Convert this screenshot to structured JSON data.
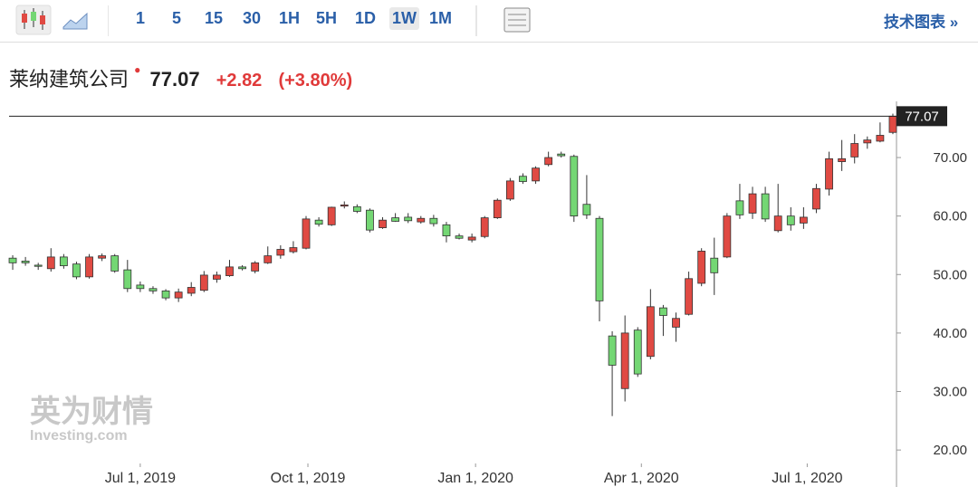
{
  "toolbar": {
    "intervals": [
      "1",
      "5",
      "15",
      "30",
      "1H",
      "5H",
      "1D",
      "1W",
      "1M"
    ],
    "active": "1W",
    "link": "技术图表 »"
  },
  "header": {
    "name": "莱纳建筑公司",
    "price": "77.07",
    "change": "+2.82",
    "change_pct": "(+3.80%)"
  },
  "watermark": {
    "cn": "英为财情",
    "en": "Investing.com"
  },
  "chart_data": {
    "type": "candlestick",
    "up_color": "#e04a43",
    "down_color": "#74d774",
    "x": [
      "2019-04-22",
      "2019-04-29",
      "2019-05-06",
      "2019-05-13",
      "2019-05-20",
      "2019-05-27",
      "2019-06-03",
      "2019-06-10",
      "2019-06-17",
      "2019-06-24",
      "2019-07-01",
      "2019-07-08",
      "2019-07-15",
      "2019-07-22",
      "2019-07-29",
      "2019-08-05",
      "2019-08-12",
      "2019-08-19",
      "2019-08-26",
      "2019-09-02",
      "2019-09-09",
      "2019-09-16",
      "2019-09-23",
      "2019-09-30",
      "2019-10-07",
      "2019-10-14",
      "2019-10-21",
      "2019-10-28",
      "2019-11-04",
      "2019-11-11",
      "2019-11-18",
      "2019-11-25",
      "2019-12-02",
      "2019-12-09",
      "2019-12-16",
      "2019-12-23",
      "2019-12-30",
      "2020-01-06",
      "2020-01-13",
      "2020-01-20",
      "2020-01-27",
      "2020-02-03",
      "2020-02-10",
      "2020-02-17",
      "2020-02-24",
      "2020-03-02",
      "2020-03-09",
      "2020-03-16",
      "2020-03-23",
      "2020-03-30",
      "2020-04-06",
      "2020-04-13",
      "2020-04-20",
      "2020-04-27",
      "2020-05-04",
      "2020-05-11",
      "2020-05-18",
      "2020-05-25",
      "2020-06-01",
      "2020-06-08",
      "2020-06-15",
      "2020-06-22",
      "2020-06-29",
      "2020-07-06",
      "2020-07-13",
      "2020-07-20",
      "2020-07-27",
      "2020-08-03",
      "2020-08-10",
      "2020-08-17"
    ],
    "open": [
      52.8,
      52.3,
      51.6,
      51.0,
      53.0,
      51.8,
      49.6,
      52.8,
      53.2,
      50.8,
      48.2,
      47.6,
      47.2,
      46.0,
      46.8,
      47.3,
      49.2,
      49.8,
      51.3,
      50.6,
      52.0,
      53.3,
      53.9,
      54.5,
      59.3,
      58.5,
      61.7,
      61.6,
      61.0,
      58.0,
      59.7,
      59.8,
      59.0,
      59.6,
      58.5,
      56.6,
      55.9,
      56.5,
      59.7,
      62.9,
      66.8,
      66.0,
      68.8,
      70.6,
      70.2,
      62.0,
      59.6,
      39.5,
      30.5,
      40.5,
      36.0,
      44.3,
      41.0,
      43.2,
      48.5,
      52.8,
      53.0,
      62.6,
      60.5,
      63.8,
      57.5,
      60.0,
      58.8,
      61.2,
      64.6,
      69.3,
      70.1,
      72.5,
      72.8,
      74.3
    ],
    "high": [
      53.3,
      53.0,
      52.0,
      54.5,
      53.5,
      52.2,
      53.5,
      53.6,
      53.5,
      52.5,
      48.8,
      48.0,
      47.5,
      47.6,
      48.7,
      50.6,
      50.5,
      52.5,
      51.6,
      52.3,
      54.8,
      55.0,
      55.7,
      60.0,
      59.8,
      61.6,
      62.5,
      62.0,
      61.3,
      59.8,
      60.5,
      60.5,
      60.0,
      60.2,
      59.0,
      57.0,
      57.0,
      60.0,
      63.0,
      66.5,
      67.3,
      68.5,
      71.0,
      71.0,
      70.5,
      67.0,
      60.0,
      40.3,
      43.0,
      41.0,
      47.5,
      44.8,
      43.5,
      50.5,
      54.5,
      56.3,
      60.5,
      65.5,
      65.0,
      65.0,
      65.5,
      61.5,
      61.5,
      65.5,
      71.0,
      73.0,
      74.0,
      73.6,
      76.0,
      77.5
    ],
    "low": [
      50.8,
      51.5,
      50.8,
      50.5,
      51.0,
      49.2,
      49.3,
      52.3,
      50.3,
      47.0,
      47.0,
      46.7,
      45.6,
      45.3,
      46.3,
      47.0,
      48.6,
      49.6,
      50.7,
      50.2,
      51.8,
      52.7,
      53.6,
      54.3,
      58.2,
      58.3,
      61.3,
      60.5,
      57.2,
      57.8,
      59.0,
      58.8,
      58.7,
      58.2,
      55.5,
      56.0,
      55.5,
      56.2,
      59.5,
      62.6,
      65.5,
      65.5,
      68.5,
      70.0,
      59.0,
      59.5,
      42.0,
      25.8,
      28.3,
      32.5,
      35.5,
      39.5,
      38.5,
      43.0,
      48.0,
      46.5,
      52.8,
      59.5,
      59.5,
      59.0,
      57.2,
      57.5,
      57.8,
      60.5,
      63.5,
      67.7,
      69.0,
      71.5,
      72.6,
      74.0
    ],
    "close": [
      52.0,
      52.0,
      51.4,
      53.0,
      51.5,
      49.6,
      53.0,
      53.2,
      50.6,
      47.6,
      47.6,
      47.2,
      46.0,
      47.0,
      47.8,
      49.9,
      49.9,
      51.3,
      51.0,
      52.0,
      53.2,
      54.3,
      54.6,
      59.5,
      58.6,
      61.5,
      61.9,
      60.8,
      57.6,
      59.3,
      59.1,
      59.2,
      59.6,
      58.7,
      56.6,
      56.2,
      56.4,
      59.7,
      62.7,
      66.0,
      65.9,
      68.2,
      70.0,
      70.3,
      60.0,
      60.2,
      45.5,
      34.5,
      40.0,
      33.0,
      44.5,
      43.0,
      42.5,
      49.3,
      54.0,
      50.3,
      60.0,
      60.2,
      63.8,
      59.5,
      60.0,
      58.5,
      59.8,
      64.7,
      69.8,
      69.8,
      72.4,
      73.0,
      73.8,
      77.07
    ],
    "ylim": [
      17.7,
      79.6
    ],
    "yticks": [
      {
        "value": 20,
        "label": "20.00"
      },
      {
        "value": 30,
        "label": "30.00"
      },
      {
        "value": 40,
        "label": "40.00"
      },
      {
        "value": 50,
        "label": "50.00"
      },
      {
        "value": 60,
        "label": "60.00"
      },
      {
        "value": 70,
        "label": "70.00"
      }
    ],
    "xlim": [
      "2019-04-20",
      "2020-08-19"
    ],
    "xticks": [
      {
        "value": "2019-07-01",
        "label": "Jul 1, 2019"
      },
      {
        "value": "2019-10-01",
        "label": "Oct 1, 2019"
      },
      {
        "value": "2020-01-01",
        "label": "Jan 1, 2020"
      },
      {
        "value": "2020-04-01",
        "label": "Apr 1, 2020"
      },
      {
        "value": "2020-07-01",
        "label": "Jul 1, 2020"
      }
    ]
  }
}
